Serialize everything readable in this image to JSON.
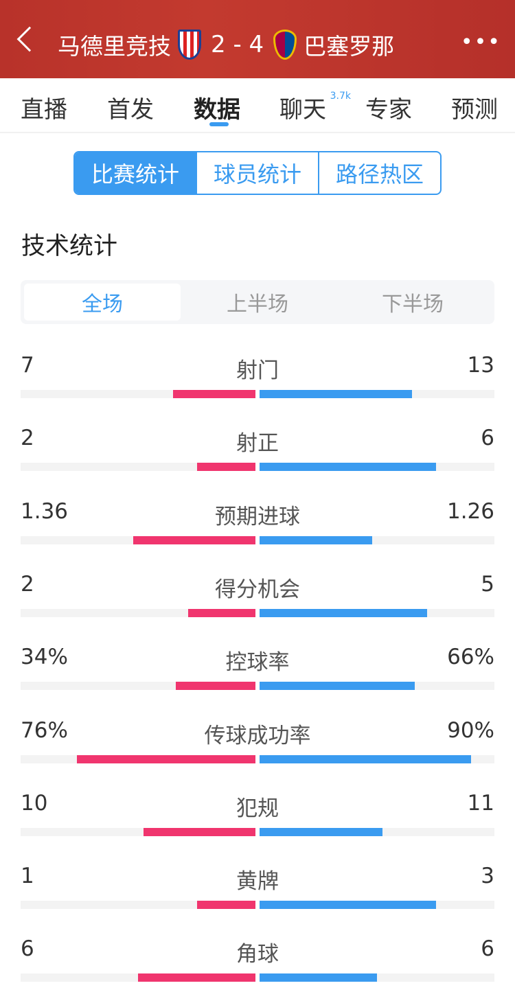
{
  "header": {
    "home": "马德里竞技",
    "score": "2 - 4",
    "away": "巴塞罗那",
    "back_icon": "chevron-left-icon",
    "more_icon": "ellipsis-icon"
  },
  "tabs": [
    {
      "label": "直播"
    },
    {
      "label": "首发"
    },
    {
      "label": "数据",
      "active": true
    },
    {
      "label": "聊天",
      "badge": "3.7k"
    },
    {
      "label": "专家"
    },
    {
      "label": "预测"
    }
  ],
  "segments": [
    "比赛统计",
    "球员统计",
    "路径热区"
  ],
  "section_title": "技术统计",
  "periods": [
    "全场",
    "上半场",
    "下半场"
  ],
  "colors": {
    "home": "#f0356e",
    "away": "#3a9bf0",
    "header": "#bd352c"
  },
  "stats": [
    {
      "name": "射门",
      "home": "7",
      "away": "13",
      "home_fill": 0.35,
      "away_fill": 0.65
    },
    {
      "name": "射正",
      "home": "2",
      "away": "6",
      "home_fill": 0.25,
      "away_fill": 0.75
    },
    {
      "name": "预期进球",
      "home": "1.36",
      "away": "1.26",
      "home_fill": 0.52,
      "away_fill": 0.48
    },
    {
      "name": "得分机会",
      "home": "2",
      "away": "5",
      "home_fill": 0.286,
      "away_fill": 0.714
    },
    {
      "name": "控球率",
      "home": "34%",
      "away": "66%",
      "home_fill": 0.34,
      "away_fill": 0.66
    },
    {
      "name": "传球成功率",
      "home": "76%",
      "away": "90%",
      "home_fill": 0.76,
      "away_fill": 0.9
    },
    {
      "name": "犯规",
      "home": "10",
      "away": "11",
      "home_fill": 0.476,
      "away_fill": 0.524
    },
    {
      "name": "黄牌",
      "home": "1",
      "away": "3",
      "home_fill": 0.25,
      "away_fill": 0.75
    },
    {
      "name": "角球",
      "home": "6",
      "away": "6",
      "home_fill": 0.5,
      "away_fill": 0.5
    }
  ]
}
